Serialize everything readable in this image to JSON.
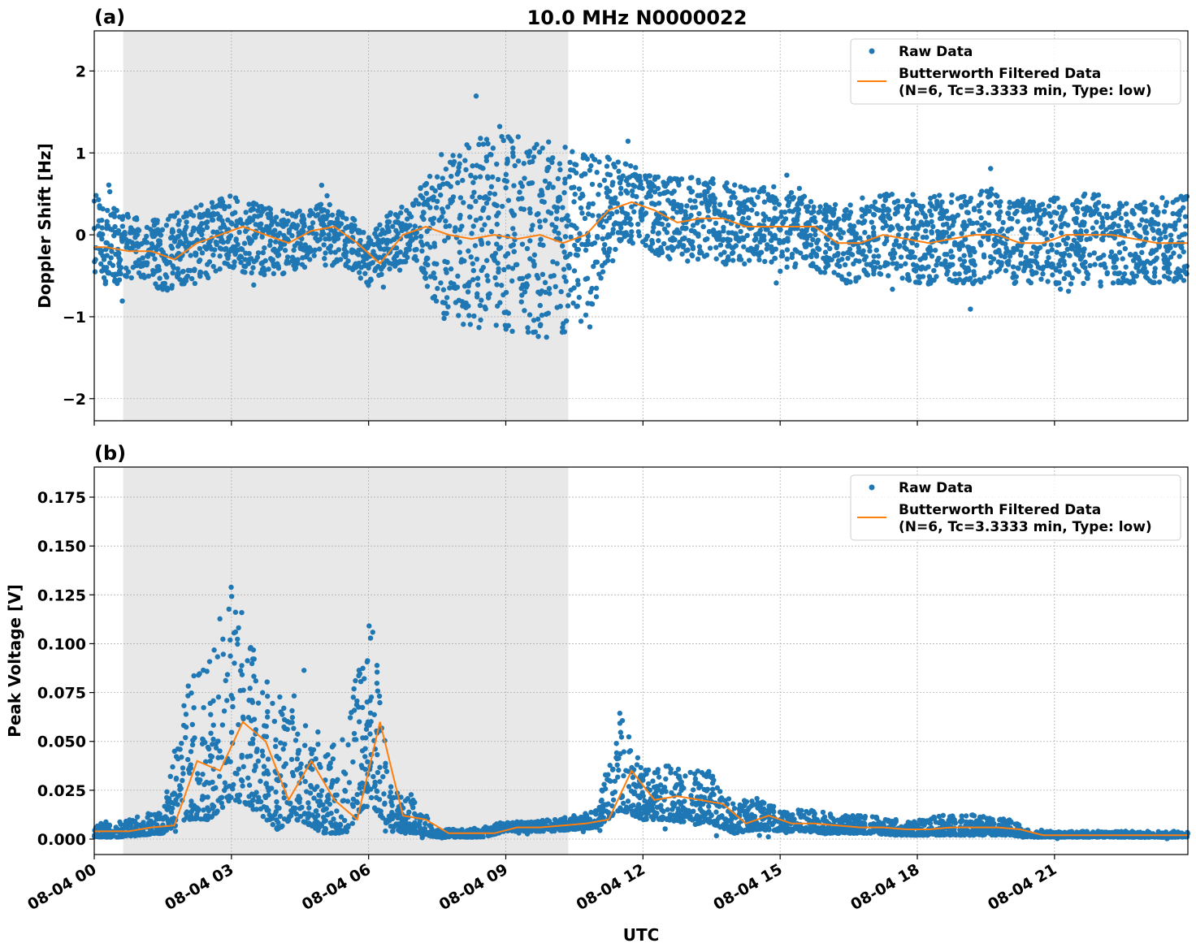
{
  "title": "10.0 MHz N0000022",
  "colors": {
    "raw": "#1f77b4",
    "filtered": "#ff7f0e",
    "shade": "#e8e8e8"
  },
  "legend": {
    "raw": "Raw Data",
    "filtered_line1": "Butterworth Filtered Data",
    "filtered_line2": "(N=6, Tc=3.3333 min, Type: low)",
    "placement": "upper right"
  },
  "xlabel": "UTC",
  "xticks": [
    "08-04 00",
    "08-04 03",
    "08-04 06",
    "08-04 09",
    "08-04 12",
    "08-04 15",
    "08-04 18",
    "08-04 21"
  ],
  "chart_data": [
    {
      "type": "scatter+line",
      "panel_label": "(a)",
      "ylabel": "Doppler Shift [Hz]",
      "ylim": [
        -2.27,
        2.49
      ],
      "xlim": [
        "00:00",
        "23:55"
      ],
      "yticks": [
        "−2",
        "−1",
        "0",
        "1",
        "2"
      ],
      "ytick_values": [
        -2,
        -1,
        0,
        1,
        2
      ],
      "grid": true,
      "shaded_span": [
        "00:38",
        "10:22"
      ],
      "time": [
        "00:00",
        "00:30",
        "01:00",
        "01:30",
        "02:00",
        "02:30",
        "03:00",
        "03:30",
        "04:00",
        "04:30",
        "05:00",
        "05:30",
        "06:00",
        "06:30",
        "07:00",
        "07:30",
        "08:00",
        "08:30",
        "09:00",
        "09:30",
        "10:00",
        "10:30",
        "11:00",
        "11:30",
        "12:00",
        "12:30",
        "13:00",
        "13:30",
        "14:00",
        "14:30",
        "15:00",
        "15:30",
        "16:00",
        "16:30",
        "17:00",
        "17:30",
        "18:00",
        "18:30",
        "19:00",
        "19:30",
        "20:00",
        "20:30",
        "21:00",
        "21:30",
        "22:00",
        "22:30",
        "23:00",
        "23:30"
      ],
      "filtered": [
        -0.15,
        -0.2,
        -0.2,
        -0.3,
        -0.1,
        0.0,
        0.1,
        0.0,
        -0.1,
        0.05,
        0.1,
        -0.1,
        -0.35,
        0.0,
        0.1,
        0.0,
        -0.05,
        0.0,
        -0.05,
        0.0,
        -0.1,
        0.0,
        0.3,
        0.4,
        0.3,
        0.15,
        0.2,
        0.2,
        0.1,
        0.1,
        0.1,
        0.1,
        -0.1,
        -0.1,
        0.0,
        -0.05,
        -0.1,
        -0.05,
        0.0,
        0.0,
        -0.1,
        -0.1,
        0.0,
        0.0,
        0.0,
        -0.05,
        -0.1,
        -0.1
      ],
      "raw_low": [
        -0.6,
        -0.6,
        -0.5,
        -0.7,
        -0.6,
        -0.5,
        -0.4,
        -0.5,
        -0.5,
        -0.4,
        -0.3,
        -0.4,
        -0.6,
        -0.4,
        -0.3,
        -0.9,
        -1.1,
        -1.2,
        -1.2,
        -1.2,
        -1.3,
        -1.2,
        -0.8,
        -0.1,
        -0.2,
        -0.3,
        -0.3,
        -0.3,
        -0.4,
        -0.3,
        -0.4,
        -0.4,
        -0.5,
        -0.6,
        -0.5,
        -0.5,
        -0.6,
        -0.6,
        -0.6,
        -0.6,
        -0.6,
        -0.6,
        -0.6,
        -0.6,
        -0.6,
        -0.6,
        -0.6,
        -0.6
      ],
      "raw_high": [
        0.5,
        0.3,
        0.2,
        0.2,
        0.3,
        0.4,
        0.5,
        0.4,
        0.3,
        0.3,
        0.4,
        0.3,
        0.0,
        0.3,
        0.4,
        1.0,
        1.1,
        1.2,
        1.2,
        1.2,
        1.2,
        1.0,
        1.0,
        0.9,
        0.8,
        0.7,
        0.7,
        0.7,
        0.6,
        0.6,
        0.6,
        0.5,
        0.4,
        0.4,
        0.5,
        0.5,
        0.4,
        0.5,
        0.5,
        0.6,
        0.5,
        0.4,
        0.5,
        0.5,
        0.5,
        0.4,
        0.4,
        0.5
      ]
    },
    {
      "type": "scatter+line",
      "panel_label": "(b)",
      "ylabel": "Peak Voltage [V]",
      "ylim": [
        -0.0079,
        0.1904
      ],
      "xlim": [
        "00:00",
        "23:55"
      ],
      "yticks": [
        "0.000",
        "0.025",
        "0.050",
        "0.075",
        "0.100",
        "0.125",
        "0.150",
        "0.175"
      ],
      "ytick_values": [
        0,
        0.025,
        0.05,
        0.075,
        0.1,
        0.125,
        0.15,
        0.175
      ],
      "grid": true,
      "shaded_span": [
        "00:38",
        "10:22"
      ],
      "time": [
        "00:00",
        "00:30",
        "01:00",
        "01:30",
        "02:00",
        "02:30",
        "03:00",
        "03:30",
        "04:00",
        "04:30",
        "05:00",
        "05:30",
        "06:00",
        "06:30",
        "07:00",
        "07:30",
        "08:00",
        "08:30",
        "09:00",
        "09:30",
        "10:00",
        "10:30",
        "11:00",
        "11:30",
        "12:00",
        "12:30",
        "13:00",
        "13:30",
        "14:00",
        "14:30",
        "15:00",
        "15:30",
        "16:00",
        "16:30",
        "17:00",
        "17:30",
        "18:00",
        "18:30",
        "19:00",
        "19:30",
        "20:00",
        "20:30",
        "21:00",
        "21:30",
        "22:00",
        "22:30",
        "23:00",
        "23:30"
      ],
      "filtered": [
        0.004,
        0.004,
        0.006,
        0.007,
        0.04,
        0.035,
        0.06,
        0.05,
        0.02,
        0.04,
        0.02,
        0.01,
        0.06,
        0.012,
        0.01,
        0.003,
        0.003,
        0.003,
        0.006,
        0.006,
        0.007,
        0.008,
        0.01,
        0.035,
        0.02,
        0.022,
        0.02,
        0.018,
        0.008,
        0.012,
        0.008,
        0.008,
        0.007,
        0.006,
        0.006,
        0.005,
        0.005,
        0.006,
        0.006,
        0.006,
        0.005,
        0.002,
        0.002,
        0.002,
        0.002,
        0.002,
        0.002,
        0.002
      ],
      "raw_low": [
        0.001,
        0.001,
        0.002,
        0.003,
        0.01,
        0.01,
        0.02,
        0.015,
        0.005,
        0.01,
        0.003,
        0.003,
        0.02,
        0.004,
        0.003,
        0.001,
        0.001,
        0.001,
        0.004,
        0.004,
        0.004,
        0.005,
        0.006,
        0.015,
        0.01,
        0.01,
        0.008,
        0.008,
        0.003,
        0.005,
        0.004,
        0.004,
        0.003,
        0.003,
        0.003,
        0.002,
        0.002,
        0.002,
        0.002,
        0.002,
        0.002,
        0.001,
        0.001,
        0.001,
        0.001,
        0.001,
        0.001,
        0.001
      ],
      "raw_high": [
        0.008,
        0.008,
        0.012,
        0.015,
        0.08,
        0.09,
        0.13,
        0.1,
        0.07,
        0.08,
        0.06,
        0.05,
        0.13,
        0.025,
        0.02,
        0.005,
        0.005,
        0.006,
        0.009,
        0.009,
        0.01,
        0.012,
        0.015,
        0.065,
        0.035,
        0.04,
        0.035,
        0.035,
        0.018,
        0.022,
        0.016,
        0.015,
        0.014,
        0.012,
        0.012,
        0.01,
        0.01,
        0.012,
        0.013,
        0.012,
        0.01,
        0.004,
        0.004,
        0.004,
        0.004,
        0.004,
        0.004,
        0.004
      ]
    }
  ]
}
